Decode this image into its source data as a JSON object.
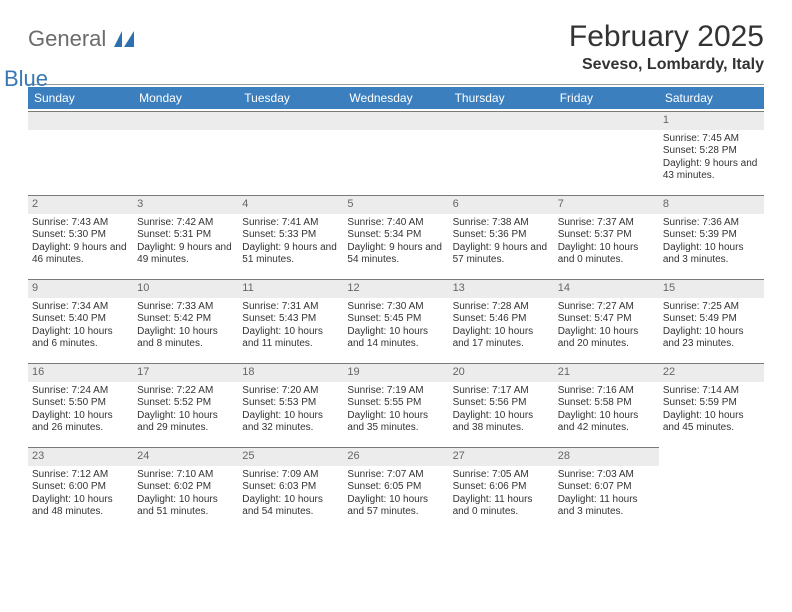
{
  "brand": {
    "part1": "General",
    "part2": "Blue"
  },
  "title": "February 2025",
  "location": "Seveso, Lombardy, Italy",
  "colors": {
    "header_bg": "#3c7fbf",
    "header_text": "#ffffff",
    "daynum_bg": "#ececec",
    "daynum_text": "#666666",
    "rule": "#999999",
    "text": "#333333",
    "brand_gray": "#6b6b6b",
    "brand_blue": "#3a78b5"
  },
  "typography": {
    "title_fontsize": 30,
    "location_fontsize": 16,
    "dow_fontsize": 12,
    "cell_fontsize": 10
  },
  "days_of_week": [
    "Sunday",
    "Monday",
    "Tuesday",
    "Wednesday",
    "Thursday",
    "Friday",
    "Saturday"
  ],
  "leading_blanks": 6,
  "days": [
    {
      "n": "1",
      "sunrise": "Sunrise: 7:45 AM",
      "sunset": "Sunset: 5:28 PM",
      "daylight": "Daylight: 9 hours and 43 minutes."
    },
    {
      "n": "2",
      "sunrise": "Sunrise: 7:43 AM",
      "sunset": "Sunset: 5:30 PM",
      "daylight": "Daylight: 9 hours and 46 minutes."
    },
    {
      "n": "3",
      "sunrise": "Sunrise: 7:42 AM",
      "sunset": "Sunset: 5:31 PM",
      "daylight": "Daylight: 9 hours and 49 minutes."
    },
    {
      "n": "4",
      "sunrise": "Sunrise: 7:41 AM",
      "sunset": "Sunset: 5:33 PM",
      "daylight": "Daylight: 9 hours and 51 minutes."
    },
    {
      "n": "5",
      "sunrise": "Sunrise: 7:40 AM",
      "sunset": "Sunset: 5:34 PM",
      "daylight": "Daylight: 9 hours and 54 minutes."
    },
    {
      "n": "6",
      "sunrise": "Sunrise: 7:38 AM",
      "sunset": "Sunset: 5:36 PM",
      "daylight": "Daylight: 9 hours and 57 minutes."
    },
    {
      "n": "7",
      "sunrise": "Sunrise: 7:37 AM",
      "sunset": "Sunset: 5:37 PM",
      "daylight": "Daylight: 10 hours and 0 minutes."
    },
    {
      "n": "8",
      "sunrise": "Sunrise: 7:36 AM",
      "sunset": "Sunset: 5:39 PM",
      "daylight": "Daylight: 10 hours and 3 minutes."
    },
    {
      "n": "9",
      "sunrise": "Sunrise: 7:34 AM",
      "sunset": "Sunset: 5:40 PM",
      "daylight": "Daylight: 10 hours and 6 minutes."
    },
    {
      "n": "10",
      "sunrise": "Sunrise: 7:33 AM",
      "sunset": "Sunset: 5:42 PM",
      "daylight": "Daylight: 10 hours and 8 minutes."
    },
    {
      "n": "11",
      "sunrise": "Sunrise: 7:31 AM",
      "sunset": "Sunset: 5:43 PM",
      "daylight": "Daylight: 10 hours and 11 minutes."
    },
    {
      "n": "12",
      "sunrise": "Sunrise: 7:30 AM",
      "sunset": "Sunset: 5:45 PM",
      "daylight": "Daylight: 10 hours and 14 minutes."
    },
    {
      "n": "13",
      "sunrise": "Sunrise: 7:28 AM",
      "sunset": "Sunset: 5:46 PM",
      "daylight": "Daylight: 10 hours and 17 minutes."
    },
    {
      "n": "14",
      "sunrise": "Sunrise: 7:27 AM",
      "sunset": "Sunset: 5:47 PM",
      "daylight": "Daylight: 10 hours and 20 minutes."
    },
    {
      "n": "15",
      "sunrise": "Sunrise: 7:25 AM",
      "sunset": "Sunset: 5:49 PM",
      "daylight": "Daylight: 10 hours and 23 minutes."
    },
    {
      "n": "16",
      "sunrise": "Sunrise: 7:24 AM",
      "sunset": "Sunset: 5:50 PM",
      "daylight": "Daylight: 10 hours and 26 minutes."
    },
    {
      "n": "17",
      "sunrise": "Sunrise: 7:22 AM",
      "sunset": "Sunset: 5:52 PM",
      "daylight": "Daylight: 10 hours and 29 minutes."
    },
    {
      "n": "18",
      "sunrise": "Sunrise: 7:20 AM",
      "sunset": "Sunset: 5:53 PM",
      "daylight": "Daylight: 10 hours and 32 minutes."
    },
    {
      "n": "19",
      "sunrise": "Sunrise: 7:19 AM",
      "sunset": "Sunset: 5:55 PM",
      "daylight": "Daylight: 10 hours and 35 minutes."
    },
    {
      "n": "20",
      "sunrise": "Sunrise: 7:17 AM",
      "sunset": "Sunset: 5:56 PM",
      "daylight": "Daylight: 10 hours and 38 minutes."
    },
    {
      "n": "21",
      "sunrise": "Sunrise: 7:16 AM",
      "sunset": "Sunset: 5:58 PM",
      "daylight": "Daylight: 10 hours and 42 minutes."
    },
    {
      "n": "22",
      "sunrise": "Sunrise: 7:14 AM",
      "sunset": "Sunset: 5:59 PM",
      "daylight": "Daylight: 10 hours and 45 minutes."
    },
    {
      "n": "23",
      "sunrise": "Sunrise: 7:12 AM",
      "sunset": "Sunset: 6:00 PM",
      "daylight": "Daylight: 10 hours and 48 minutes."
    },
    {
      "n": "24",
      "sunrise": "Sunrise: 7:10 AM",
      "sunset": "Sunset: 6:02 PM",
      "daylight": "Daylight: 10 hours and 51 minutes."
    },
    {
      "n": "25",
      "sunrise": "Sunrise: 7:09 AM",
      "sunset": "Sunset: 6:03 PM",
      "daylight": "Daylight: 10 hours and 54 minutes."
    },
    {
      "n": "26",
      "sunrise": "Sunrise: 7:07 AM",
      "sunset": "Sunset: 6:05 PM",
      "daylight": "Daylight: 10 hours and 57 minutes."
    },
    {
      "n": "27",
      "sunrise": "Sunrise: 7:05 AM",
      "sunset": "Sunset: 6:06 PM",
      "daylight": "Daylight: 11 hours and 0 minutes."
    },
    {
      "n": "28",
      "sunrise": "Sunrise: 7:03 AM",
      "sunset": "Sunset: 6:07 PM",
      "daylight": "Daylight: 11 hours and 3 minutes."
    }
  ]
}
